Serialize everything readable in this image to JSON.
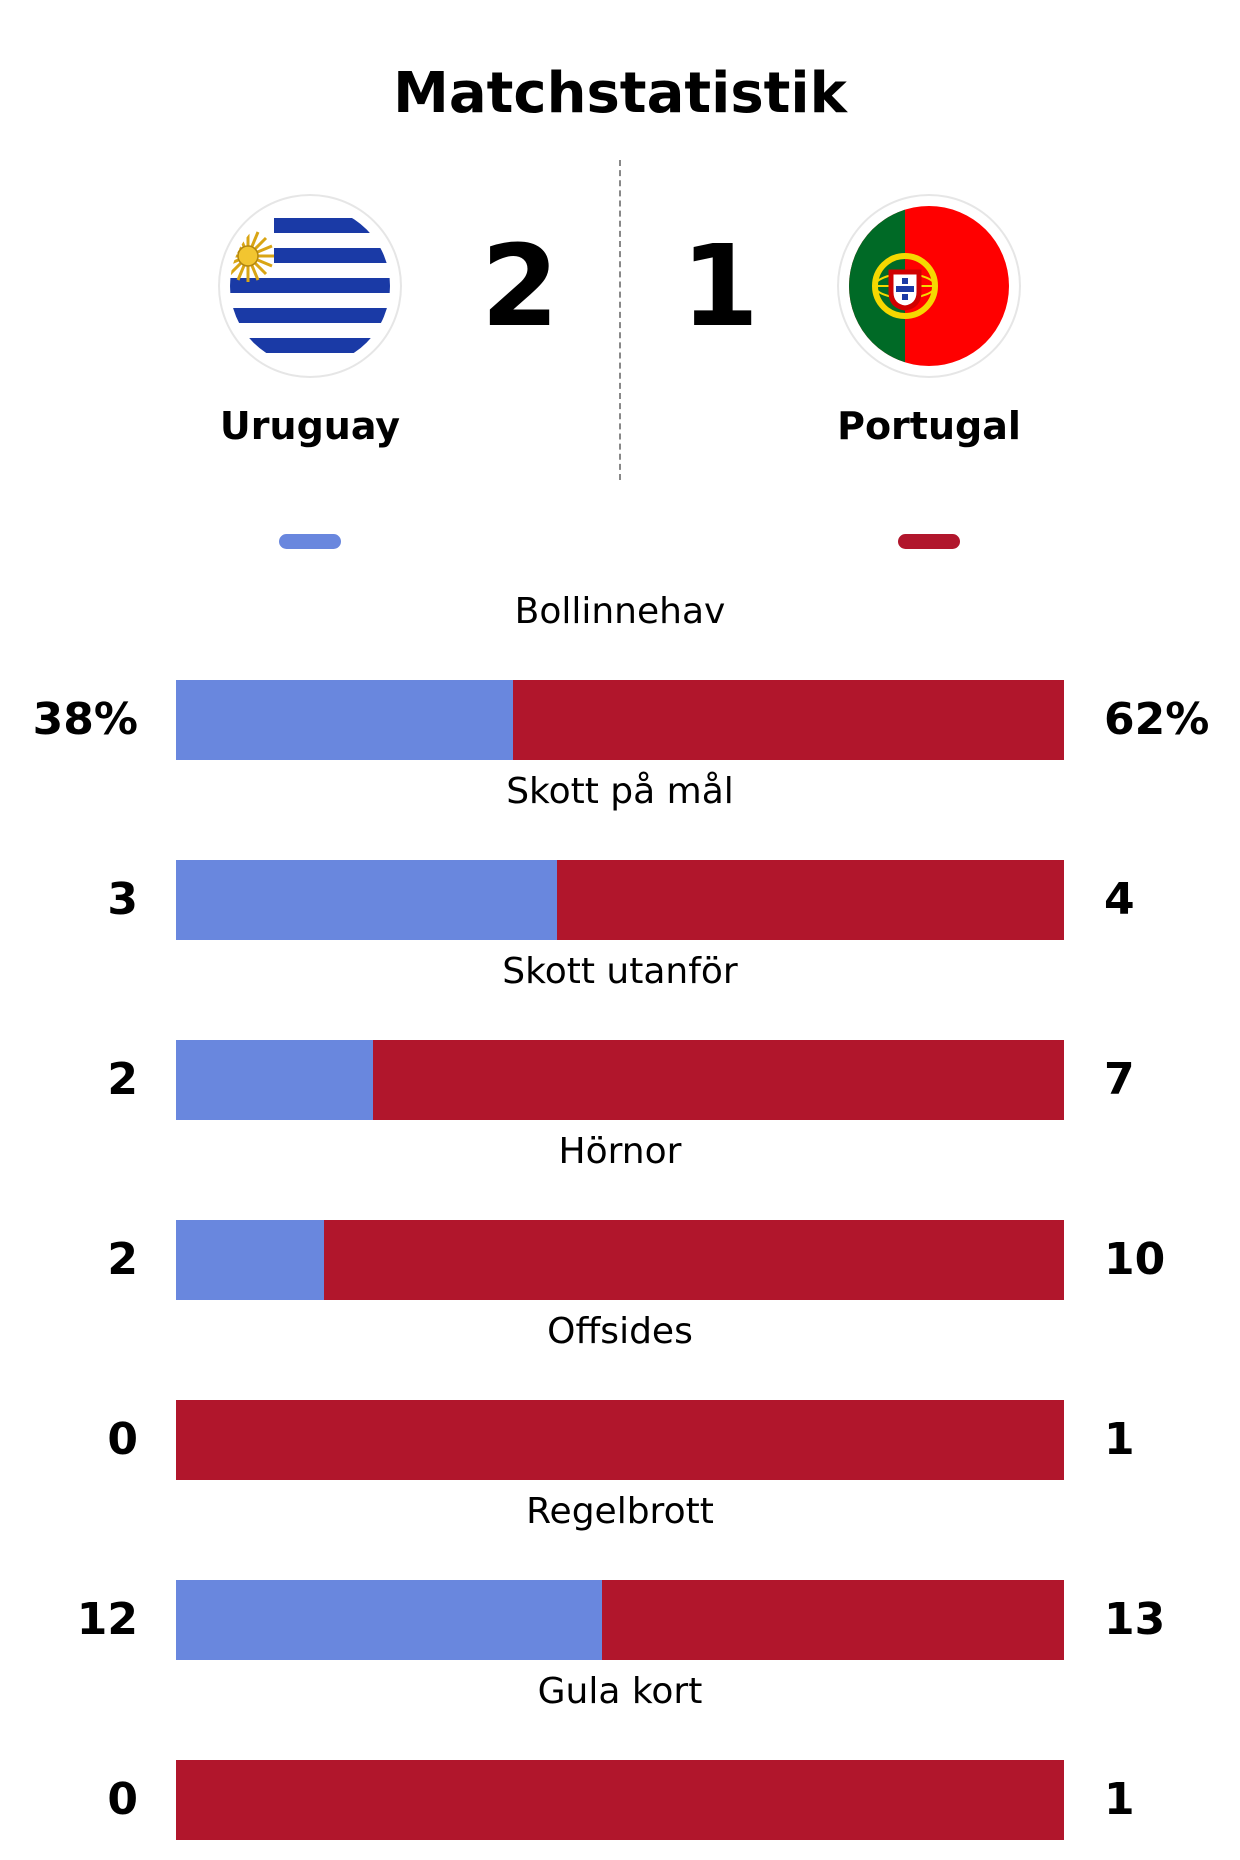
{
  "title": "Matchstatistik",
  "home": {
    "name": "Uruguay",
    "score": "2",
    "color": "#6987de",
    "flag_icon": "uruguay-flag-icon"
  },
  "away": {
    "name": "Portugal",
    "score": "1",
    "color": "#b1162c",
    "flag_icon": "portugal-flag-icon"
  },
  "chart_data": {
    "type": "bar",
    "orientation": "horizontal-stacked-comparison",
    "series": [
      {
        "name": "Uruguay",
        "color": "#6987de"
      },
      {
        "name": "Portugal",
        "color": "#b1162c"
      }
    ],
    "stats": [
      {
        "label": "Bollinnehav",
        "home": 38,
        "away": 62,
        "home_label": "38%",
        "away_label": "62%"
      },
      {
        "label": "Skott på mål",
        "home": 3,
        "away": 4,
        "home_label": "3",
        "away_label": "4"
      },
      {
        "label": "Skott utanför",
        "home": 2,
        "away": 7,
        "home_label": "2",
        "away_label": "7"
      },
      {
        "label": "Hörnor",
        "home": 2,
        "away": 10,
        "home_label": "2",
        "away_label": "10"
      },
      {
        "label": "Offsides",
        "home": 0,
        "away": 1,
        "home_label": "0",
        "away_label": "1"
      },
      {
        "label": "Regelbrott",
        "home": 12,
        "away": 13,
        "home_label": "12",
        "away_label": "13"
      },
      {
        "label": "Gula kort",
        "home": 0,
        "away": 1,
        "home_label": "0",
        "away_label": "1"
      }
    ]
  }
}
